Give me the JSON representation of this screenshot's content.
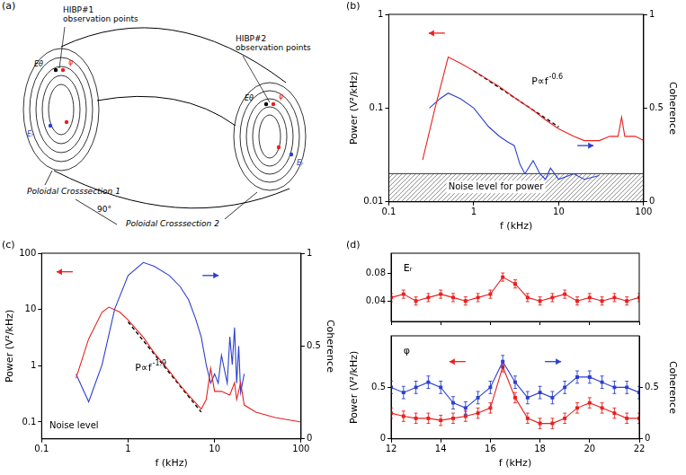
{
  "diagram": {
    "panel": "(a)",
    "hibp_labels": [
      "HIBP#1 observation points",
      "HIBP#2 observation points"
    ],
    "cross_sections": [
      "Poloidal Crosssection 1",
      "Poloidal Crosssection 2"
    ],
    "angle_label": "90°",
    "point_labels": [
      "Eθ",
      "φ",
      "Eᵣ"
    ]
  },
  "chart_data": [
    {
      "panel": "(b)",
      "type": "line",
      "log": true,
      "grid": false,
      "x_label": "f (kHz)",
      "y_label": "Power (V²/kHz)",
      "y2_label": "Coherence",
      "xlim": [
        0.1,
        100
      ],
      "xticks": [
        0.1,
        1,
        10,
        100
      ],
      "ylim": [
        0.01,
        1
      ],
      "yticks": [
        0.01,
        0.1,
        1
      ],
      "y2lim": [
        0,
        1
      ],
      "y2ticks": [
        0,
        0.5,
        1
      ],
      "noise_level": 0.02,
      "annotations": [
        {
          "text": "P∝f",
          "exponent": "-0.6"
        },
        {
          "text": "Noise level for power"
        }
      ],
      "series": [
        {
          "color": "#e8201e",
          "marker": "none",
          "line_style": "solid",
          "x": [
            0.25,
            0.35,
            0.5,
            0.7,
            1,
            2,
            3,
            5,
            7,
            10,
            15,
            20,
            30,
            40,
            50,
            55,
            60,
            80,
            100
          ],
          "values": [
            0.028,
            0.1,
            0.35,
            0.3,
            0.25,
            0.17,
            0.13,
            0.095,
            0.075,
            0.06,
            0.05,
            0.045,
            0.045,
            0.05,
            0.05,
            0.08,
            0.05,
            0.05,
            0.045
          ]
        },
        {
          "color": "#2b3fd1",
          "marker": "none",
          "line_style": "solid",
          "axis": "y2",
          "x": [
            0.3,
            0.4,
            0.5,
            0.7,
            1,
            1.5,
            2,
            2.5,
            3,
            3.5,
            4,
            5,
            6,
            7,
            8,
            10,
            15,
            20,
            30
          ],
          "values": [
            0.5,
            0.55,
            0.58,
            0.55,
            0.5,
            0.4,
            0.35,
            0.32,
            0.3,
            0.2,
            0.15,
            0.22,
            0.15,
            0.12,
            0.18,
            0.12,
            0.15,
            0.12,
            0.14
          ]
        },
        {
          "color": "#000000",
          "marker": "none",
          "line_style": "dashed",
          "x": [
            1,
            10
          ],
          "values": [
            0.25,
            0.063
          ]
        }
      ]
    },
    {
      "panel": "(c)",
      "type": "line",
      "log": true,
      "grid": false,
      "x_label": "f (kHz)",
      "y_label": "Power (V²/kHz)",
      "y2_label": "Coherence",
      "xlim": [
        0.1,
        100
      ],
      "xticks": [
        0.1,
        1,
        10,
        100
      ],
      "ylim": [
        0.05,
        100
      ],
      "yticks": [
        0.1,
        1,
        10,
        100
      ],
      "y2lim": [
        0,
        1
      ],
      "y2ticks": [
        0,
        0.5,
        1
      ],
      "annotations": [
        {
          "text": "P∝f",
          "exponent": "-1.9"
        },
        {
          "text": "Noise level"
        }
      ],
      "series": [
        {
          "color": "#e8201e",
          "marker": "none",
          "line_style": "solid",
          "x": [
            0.25,
            0.35,
            0.5,
            0.6,
            0.8,
            1,
            1.5,
            2,
            3,
            4,
            5,
            6,
            7,
            8,
            9,
            10,
            12,
            15,
            17,
            18,
            20,
            22,
            30,
            50,
            100
          ],
          "values": [
            0.6,
            3,
            9,
            11,
            9,
            6.5,
            3.2,
            1.7,
            0.8,
            0.45,
            0.3,
            0.22,
            0.17,
            0.25,
            0.9,
            0.35,
            0.35,
            0.3,
            0.5,
            0.25,
            0.5,
            0.2,
            0.15,
            0.12,
            0.1
          ]
        },
        {
          "color": "#2b3fd1",
          "marker": "none",
          "line_style": "solid",
          "axis": "y2",
          "x": [
            0.25,
            0.35,
            0.5,
            0.7,
            1,
            1.5,
            2,
            3,
            4,
            5,
            6,
            7,
            8,
            9,
            10,
            11,
            12,
            14,
            15,
            16,
            17,
            18,
            19,
            20,
            22
          ],
          "values": [
            0.35,
            0.2,
            0.4,
            0.7,
            0.88,
            0.95,
            0.93,
            0.88,
            0.82,
            0.75,
            0.65,
            0.55,
            0.4,
            0.3,
            0.35,
            0.3,
            0.45,
            0.3,
            0.55,
            0.4,
            0.6,
            0.3,
            0.5,
            0.25,
            0.35
          ]
        },
        {
          "color": "#000000",
          "marker": "none",
          "line_style": "dashed",
          "x": [
            1,
            7
          ],
          "values": [
            6,
            0.15
          ]
        }
      ]
    },
    {
      "panel": "(d)",
      "type": "line",
      "grid": false,
      "tick_labels": "y",
      "xlim": [
        12,
        22
      ],
      "xticks": [
        12,
        14,
        16,
        18,
        20,
        22
      ],
      "ylim": [
        0.01,
        0.11
      ],
      "yticks": [
        0.04,
        0.08
      ],
      "annotations": [
        {
          "text": "Eᵣ"
        }
      ],
      "x": [
        12,
        12.5,
        13,
        13.5,
        14,
        14.5,
        15,
        15.5,
        16,
        16.5,
        17,
        17.5,
        18,
        18.5,
        19,
        19.5,
        20,
        20.5,
        21,
        21.5,
        22
      ],
      "series": [
        {
          "color": "#e8201e",
          "marker": "square",
          "line_style": "solid",
          "values": [
            0.045,
            0.05,
            0.04,
            0.045,
            0.05,
            0.045,
            0.04,
            0.045,
            0.05,
            0.075,
            0.065,
            0.045,
            0.04,
            0.045,
            0.05,
            0.04,
            0.045,
            0.04,
            0.045,
            0.04,
            0.045
          ],
          "errors": [
            0.006,
            0.006,
            0.006,
            0.006,
            0.006,
            0.006,
            0.006,
            0.006,
            0.006,
            0.006,
            0.006,
            0.006,
            0.006,
            0.006,
            0.006,
            0.006,
            0.006,
            0.006,
            0.006,
            0.006,
            0.006
          ]
        }
      ]
    },
    {
      "type": "line",
      "grid": false,
      "x_label": "f (kHz)",
      "y_label": "Power (V²/kHz)",
      "y2_label": "Coherence",
      "xlim": [
        12,
        22
      ],
      "xticks": [
        12,
        14,
        16,
        18,
        20,
        22
      ],
      "ylim": [
        0,
        1
      ],
      "yticks": [
        0,
        0.5
      ],
      "y2lim": [
        0,
        1
      ],
      "y2ticks": [
        0,
        0.5
      ],
      "annotations": [
        {
          "text": "φ"
        }
      ],
      "x": [
        12,
        12.5,
        13,
        13.5,
        14,
        14.5,
        15,
        15.5,
        16,
        16.5,
        17,
        17.5,
        18,
        18.5,
        19,
        19.5,
        20,
        20.5,
        21,
        21.5,
        22
      ],
      "series": [
        {
          "color": "#e8201e",
          "marker": "square",
          "line_style": "solid",
          "values": [
            0.25,
            0.22,
            0.2,
            0.2,
            0.18,
            0.2,
            0.22,
            0.25,
            0.3,
            0.7,
            0.4,
            0.2,
            0.15,
            0.15,
            0.2,
            0.3,
            0.35,
            0.3,
            0.25,
            0.2,
            0.2
          ],
          "errors": [
            0.05,
            0.05,
            0.05,
            0.05,
            0.05,
            0.05,
            0.05,
            0.05,
            0.05,
            0.05,
            0.05,
            0.05,
            0.05,
            0.05,
            0.05,
            0.05,
            0.05,
            0.05,
            0.05,
            0.05,
            0.05
          ]
        },
        {
          "color": "#2b3fd1",
          "marker": "square",
          "line_style": "solid",
          "axis": "y2",
          "values": [
            0.5,
            0.45,
            0.5,
            0.55,
            0.5,
            0.35,
            0.3,
            0.4,
            0.5,
            0.75,
            0.55,
            0.4,
            0.45,
            0.4,
            0.5,
            0.6,
            0.6,
            0.55,
            0.5,
            0.5,
            0.45
          ],
          "errors": [
            0.06,
            0.06,
            0.06,
            0.06,
            0.06,
            0.06,
            0.06,
            0.06,
            0.06,
            0.06,
            0.06,
            0.06,
            0.06,
            0.06,
            0.06,
            0.06,
            0.06,
            0.06,
            0.06,
            0.06,
            0.06
          ]
        }
      ]
    }
  ]
}
